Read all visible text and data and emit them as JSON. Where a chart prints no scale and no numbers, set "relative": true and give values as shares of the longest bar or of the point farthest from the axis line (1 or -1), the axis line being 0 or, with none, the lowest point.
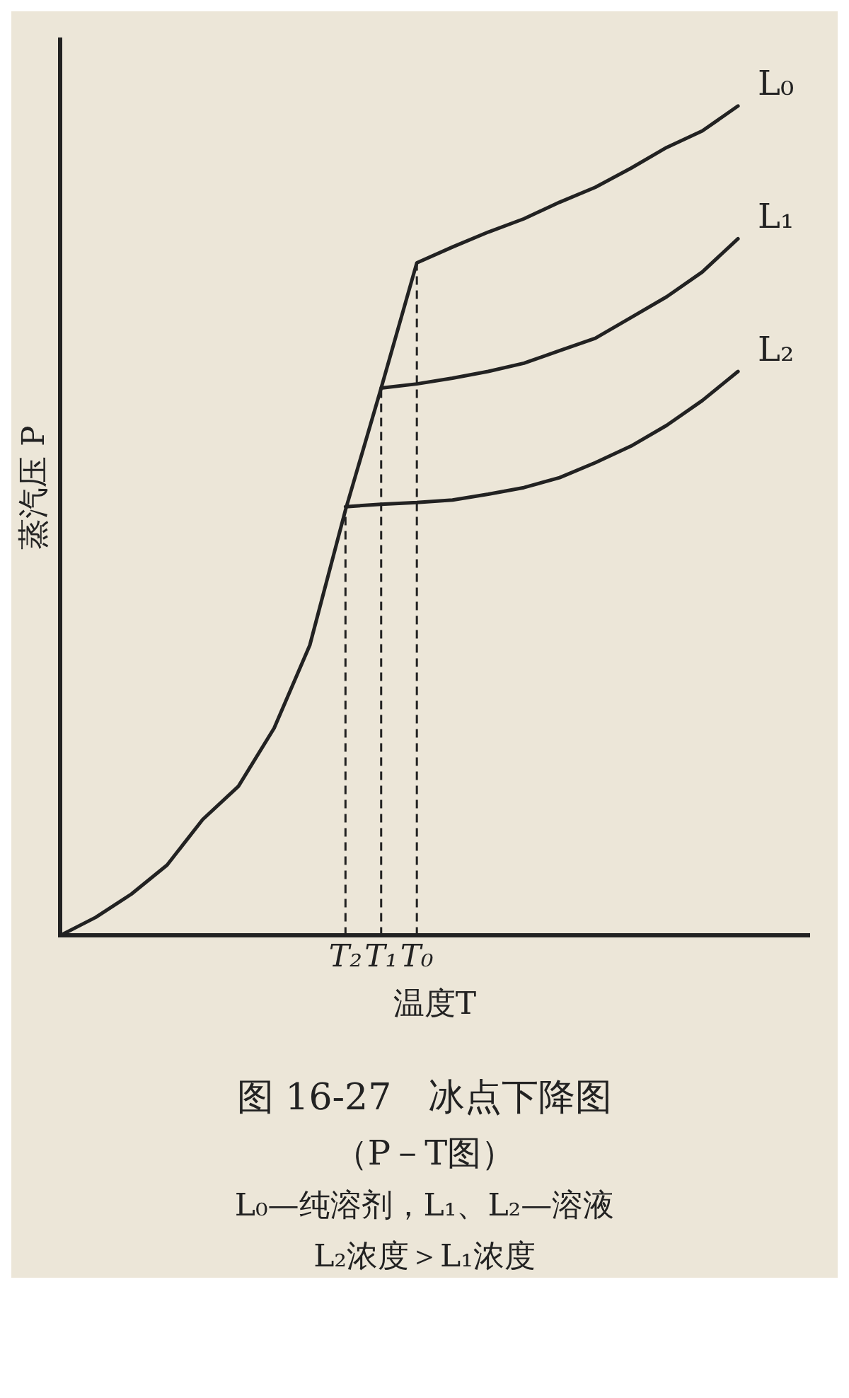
{
  "chart_data": {
    "type": "line",
    "relative": true,
    "title": "图 16-27　冰点下降图",
    "xlabel": "温度T",
    "ylabel": "蒸汽压 P",
    "annotations": [
      "（P－T图）",
      "L₀—纯溶剂，L₁、L₂—溶液",
      "L₂浓度＞L₁浓度"
    ],
    "categories": [
      null,
      null,
      null,
      null,
      null,
      null,
      null,
      null,
      "T₂",
      "T₁",
      "T₀",
      null,
      null,
      null,
      null,
      null,
      null,
      null,
      null,
      null,
      null,
      null
    ],
    "series": [
      {
        "name": "L₀",
        "color": "#222222",
        "values": [
          0,
          0.022,
          0.05,
          0.085,
          0.14,
          0.18,
          0.25,
          0.35,
          0.513,
          0.66,
          0.811,
          0.83,
          0.848,
          0.864,
          0.884,
          0.902,
          0.925,
          0.95,
          0.97,
          1,
          null,
          null
        ]
      },
      {
        "name": "L₁",
        "color": "#222222",
        "values": [
          null,
          null,
          null,
          null,
          null,
          null,
          null,
          null,
          null,
          0.66,
          0.665,
          0.672,
          0.68,
          0.69,
          0.705,
          0.72,
          0.745,
          0.77,
          0.8,
          0.84,
          null,
          null
        ]
      },
      {
        "name": "L₂",
        "color": "#222222",
        "values": [
          null,
          null,
          null,
          null,
          null,
          null,
          null,
          null,
          0.517,
          0.52,
          0.522,
          0.525,
          0.532,
          0.54,
          0.552,
          0.57,
          0.59,
          0.615,
          0.645,
          0.68,
          null,
          null
        ]
      }
    ],
    "ref_lines": [
      {
        "axis": "x",
        "value": "T₂",
        "line_style": "dashed"
      },
      {
        "axis": "x",
        "value": "T₁",
        "line_style": "dashed"
      },
      {
        "axis": "x",
        "value": "T₀",
        "line_style": "dashed"
      }
    ],
    "grid": false,
    "legend": false,
    "marker": "none",
    "line_style": "solid"
  }
}
